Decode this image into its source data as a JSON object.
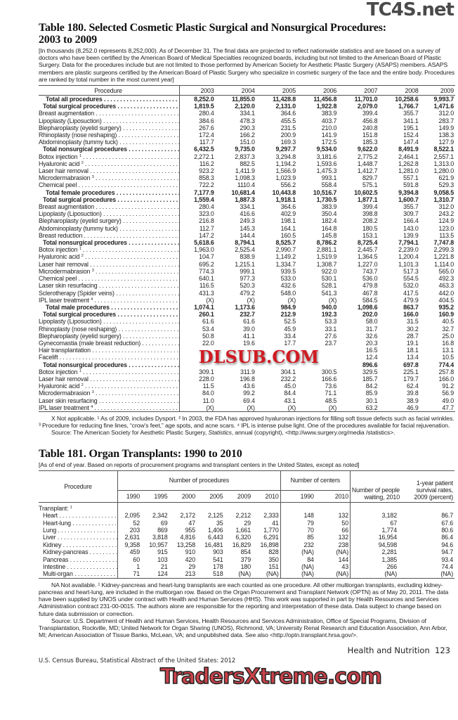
{
  "table180": {
    "title_line1": "Table 180. Selected Cosmetic Plastic Surgical and Nonsurgical Procedures:",
    "title_line2": "2003 to 2009",
    "intro": "[In thousands (8,252.0 represents 8,252,000). As of December 31. The final data are projected to reflect nationwide statistics and are based on a survey of doctors who have been certified by the American Board of Medical Specialties recognized boards, including but not limited to the American Board of Plastic Surgery. Data for the procedures include but are not limited to those performed by American Society for Aesthetic Plastic Surgery (ASAPS) members. ASAPS members are plastic surgeons certified by the American Board of Plastic Surgery who specialize in cosmetic surgery of the face and the entire body. Procedures are ranked by total number in the most current year]",
    "header_procedure": "Procedure",
    "years": [
      "2003",
      "2004",
      "2005",
      "2006",
      "2007",
      "2008",
      "2009"
    ],
    "rows": [
      {
        "label": "Total all procedures",
        "level": 1,
        "bold": true,
        "values": [
          "8,252.0",
          "11,855.0",
          "11,428.8",
          "11,456.8",
          "11,701.0",
          "10,258.6",
          "9,993.7"
        ]
      },
      {
        "label": "Total surgical procedures",
        "level": 2,
        "bold": true,
        "values": [
          "1,819.5",
          "2,120.0",
          "2,131.0",
          "1,922.8",
          "2,079.0",
          "1,766.7",
          "1,471.6"
        ]
      },
      {
        "label": "Breast augmentation",
        "values": [
          "280.4",
          "334.1",
          "364.6",
          "383.9",
          "399.4",
          "355.7",
          "312.0"
        ]
      },
      {
        "label": "Lipoplasty (Liposuction)",
        "values": [
          "384.6",
          "478.3",
          "455.5",
          "403.7",
          "456.8",
          "341.1",
          "283.7"
        ]
      },
      {
        "label": "Blepharoplasty (eyelid surgery)",
        "values": [
          "267.6",
          "290.3",
          "231.5",
          "210.0",
          "240.8",
          "195.1",
          "149.9"
        ]
      },
      {
        "label": "Rhinoplasty (nose reshaping)",
        "values": [
          "172.4",
          "166.2",
          "200.9",
          "141.9",
          "151.8",
          "152.4",
          "138.3"
        ]
      },
      {
        "label": "Abdominoplasty (tummy tuck)",
        "values": [
          "117.7",
          "151.0",
          "169.3",
          "172.5",
          "185.3",
          "147.4",
          "127.9"
        ]
      },
      {
        "label": "Total nonsurgical procedures",
        "level": 2,
        "bold": true,
        "values": [
          "6,432.5",
          "9,735.0",
          "9,297.7",
          "9,534.0",
          "9,622.0",
          "8,491.9",
          "8,522.1"
        ]
      },
      {
        "label": "Botox injection",
        "sup": "1",
        "values": [
          "2,272.1",
          "2,837.3",
          "3,294.8",
          "3,181.6",
          "2,775.2",
          "2,464.1",
          "2,557.1"
        ]
      },
      {
        "label": "Hyaluronic acid",
        "sup": "2",
        "values": [
          "116.2",
          "882.5",
          "1,194.2",
          "1,593.6",
          "1,448.7",
          "1,262.8",
          "1,313.0"
        ]
      },
      {
        "label": "Laser hair removal",
        "values": [
          "923.2",
          "1,411.9",
          "1,566.9",
          "1,475.3",
          "1,412.7",
          "1,281.0",
          "1,280.0"
        ]
      },
      {
        "label": "Microdermabrasion",
        "sup": "3",
        "values": [
          "858.3",
          "1,098.3",
          "1,023.9",
          "993.1",
          "829.7",
          "557.1",
          "621.9"
        ]
      },
      {
        "label": "Chemical peel",
        "values": [
          "722.2",
          "1110.4",
          "556.2",
          "558.4",
          "575.1",
          "591.8",
          "529.3"
        ]
      },
      {
        "label": "Total female procedures",
        "level": 1,
        "bold": true,
        "values": [
          "7,177.9",
          "10,681.4",
          "10,443.8",
          "10,516.7",
          "10,602.5",
          "9,394.8",
          "9,058.5"
        ]
      },
      {
        "label": "Total surgical procedures",
        "level": 2,
        "bold": true,
        "values": [
          "1,559.4",
          "1,887.3",
          "1,918.1",
          "1,730.5",
          "1,877.1",
          "1,600.7",
          "1,310.7"
        ]
      },
      {
        "label": "Breast augmentation",
        "values": [
          "280.4",
          "334.1",
          "364.6",
          "383.9",
          "399.4",
          "355.7",
          "312.0"
        ]
      },
      {
        "label": "Lipoplasty (Liposuction)",
        "values": [
          "323.0",
          "416.6",
          "402.9",
          "350.4",
          "398.8",
          "309.7",
          "243.2"
        ]
      },
      {
        "label": "Blepharoplasty (eyelid surgery)",
        "values": [
          "216.8",
          "249.3",
          "198.1",
          "182.4",
          "208.2",
          "166.4",
          "124.9"
        ]
      },
      {
        "label": "Abdominoplasty (tummy tuck)",
        "values": [
          "112.7",
          "145.3",
          "164.1",
          "164.8",
          "180.5",
          "143.0",
          "123.0"
        ]
      },
      {
        "label": "Breast reduction",
        "values": [
          "147.2",
          "144.4",
          "160.5",
          "145.8",
          "153.1",
          "139.9",
          "113.5"
        ]
      },
      {
        "label": "Total nonsurgical procedures",
        "level": 2,
        "bold": true,
        "values": [
          "5,618.6",
          "8,794.1",
          "8,525.7",
          "8,786.2",
          "8,725.4",
          "7,794.1",
          "7,747.8"
        ]
      },
      {
        "label": "Botox injection",
        "sup": "1",
        "values": [
          "1,963.0",
          "2,525.4",
          "2,990.7",
          "2,881.1",
          "2,445.7",
          "2,239.0",
          "2,299.3"
        ]
      },
      {
        "label": "Hyaluronic acid",
        "sup": "2",
        "values": [
          "104.7",
          "838.9",
          "1,149.2",
          "1,519.9",
          "1,364.5",
          "1,200.4",
          "1,221.8"
        ]
      },
      {
        "label": "Laser hair removal",
        "values": [
          "695.2",
          "1,215.1",
          "1,334.7",
          "1,308.7",
          "1,227.0",
          "1,101.3",
          "1,114.0"
        ]
      },
      {
        "label": "Microdermabrasion",
        "sup": "3",
        "values": [
          "774.3",
          "999.1",
          "939.5",
          "922.0",
          "743.7",
          "517.3",
          "565.0"
        ]
      },
      {
        "label": "Chemical peel",
        "values": [
          "640.1",
          "977.3",
          "533.0",
          "530.1",
          "536.0",
          "554.5",
          "492.3"
        ]
      },
      {
        "label": "Laser skin resurfacing",
        "values": [
          "116.5",
          "520.3",
          "432.6",
          "528.1",
          "479.8",
          "532.0",
          "463.3"
        ]
      },
      {
        "label": "Sclerotherapy (Spider veins)",
        "values": [
          "431.3",
          "479.2",
          "548.0",
          "541.3",
          "467.8",
          "417.5",
          "442.0"
        ]
      },
      {
        "label": "IPL laser treatment",
        "sup": "4",
        "values": [
          "(X)",
          "(X)",
          "(X)",
          "(X)",
          "584.5",
          "479.9",
          "404.5"
        ]
      },
      {
        "label": "Total male procedures",
        "level": 1,
        "bold": true,
        "values": [
          "1,074.1",
          "1,173.6",
          "984.9",
          "940.0",
          "1,098.6",
          "863.7",
          "935.2"
        ]
      },
      {
        "label": "Total surgical procedures",
        "level": 2,
        "bold": true,
        "values": [
          "260.1",
          "232.7",
          "212.9",
          "192.3",
          "202.0",
          "166.0",
          "160.9"
        ]
      },
      {
        "label": "Lipoplasty (Liposuction)",
        "values": [
          "61.6",
          "61.6",
          "52.5",
          "53.3",
          "58.0",
          "31.5",
          "40.5"
        ]
      },
      {
        "label": "Rhinoplasty (nose reshaping)",
        "values": [
          "53.4",
          "39.0",
          "45.9",
          "33.1",
          "31.7",
          "30.2",
          "32.7"
        ]
      },
      {
        "label": "Blepharoplasty (eyelid surgery)",
        "values": [
          "50.8",
          "41.1",
          "33.4",
          "27.6",
          "32.6",
          "28.7",
          "25.0"
        ]
      },
      {
        "label": "Gynecomastia (male breast reduction)",
        "values": [
          "22.0",
          "19.6",
          "17.7",
          "23.7",
          "20.3",
          "19.1",
          "16.8"
        ]
      },
      {
        "label": "Hair transplantation",
        "values": [
          "",
          "",
          "",
          "",
          "16.5",
          "18.1",
          "13.1"
        ]
      },
      {
        "label": "Facelift",
        "values": [
          "",
          "",
          "",
          "",
          "12.4",
          "13.4",
          "10.5"
        ]
      },
      {
        "label": "Total nonsurgical procedures",
        "level": 2,
        "bold": true,
        "values": [
          "",
          "",
          "",
          "",
          "896.6",
          "697.8",
          "774.4"
        ]
      },
      {
        "label": "Botox injection",
        "sup": "1",
        "values": [
          "309.1",
          "311.9",
          "304.1",
          "300.5",
          "329.5",
          "225.1",
          "257.8"
        ]
      },
      {
        "label": "Laser hair removal",
        "values": [
          "228.0",
          "196.8",
          "232.2",
          "166.6",
          "185.7",
          "179.7",
          "166.0"
        ]
      },
      {
        "label": "Hyaluronic acid",
        "sup": "2",
        "values": [
          "11.5",
          "43.6",
          "45.0",
          "73.6",
          "84.2",
          "62.4",
          "91.2"
        ]
      },
      {
        "label": "Microdermabrasion",
        "sup": "3",
        "values": [
          "84.0",
          "99.2",
          "84.4",
          "71.1",
          "85.9",
          "39.8",
          "56.9"
        ]
      },
      {
        "label": "Laser skin resurfacing",
        "values": [
          "11.0",
          "69.4",
          "43.1",
          "48.5",
          "30.1",
          "38.9",
          "49.0"
        ]
      },
      {
        "label": "IPL laser treatment",
        "sup": "4",
        "values": [
          "(X)",
          "(X)",
          "(X)",
          "(X)",
          "63.2",
          "46.9",
          "47.7"
        ]
      }
    ],
    "footnote": "X Not applicable. ¹ As of 2009, includes Dysport. ² In 2003, the FDA has approved hyaluronan injections for filling soft tissue defects such as facial wrinkles. ³ Procedure for reducing fine lines, “crow’s feet,” age spots, and acne scars. ⁴ IPL is intense pulse light. One of the procedures available for facial rejuvenation.",
    "source_pre": "Source: The American Society for Aesthetic Plastic Surgery, ",
    "source_italic": "Statistics",
    "source_post": ", annual (copyright), <http://www.surgery.org/media /statistics>."
  },
  "table181": {
    "title": "Table 181. Organ Transplants: 1990 to 2010",
    "intro": "[As of end of year. Based on reports of procurement programs and transplant centers in the United States, except as noted]",
    "header_procedure": "Procedure",
    "header_procedures": "Number of procedures",
    "header_centers": "Number of centers",
    "header_waiting": "Number of people waiting, 2010",
    "header_survival": "1-year patient survival rates, 2009 (percent)",
    "proc_years": [
      "1990",
      "1995",
      "2000",
      "2005",
      "2009",
      "2010"
    ],
    "center_years": [
      "1990",
      "2010"
    ],
    "group_label": "Transplant:",
    "group_sup": "1",
    "rows": [
      {
        "label": "Heart",
        "values": [
          "2,095",
          "2,342",
          "2,172",
          "2,125",
          "2,212",
          "2,333",
          "148",
          "132",
          "3,182",
          "86.7"
        ]
      },
      {
        "label": "Heart-lung",
        "values": [
          "52",
          "69",
          "47",
          "35",
          "29",
          "41",
          "79",
          "50",
          "67",
          "67.6"
        ]
      },
      {
        "label": "Lung",
        "values": [
          "203",
          "869",
          "955",
          "1,406",
          "1,661",
          "1,770",
          "70",
          "66",
          "1,774",
          "80.6"
        ]
      },
      {
        "label": "Liver",
        "values": [
          "2,631",
          "3,818",
          "4,816",
          "6,443",
          "6,320",
          "6,291",
          "85",
          "132",
          "16,954",
          "86.4"
        ]
      },
      {
        "label": "Kidney",
        "values": [
          "9,358",
          "10,957",
          "13,258",
          "16,481",
          "16,829",
          "16,898",
          "232",
          "238",
          "94,598",
          "94.6"
        ]
      },
      {
        "label": "Kidney-pancreas",
        "values": [
          "459",
          "915",
          "910",
          "903",
          "854",
          "828",
          "(NA)",
          "(NA)",
          "2,281",
          "94.7"
        ]
      },
      {
        "label": "Pancreas",
        "values": [
          "60",
          "103",
          "420",
          "541",
          "379",
          "350",
          "84",
          "144",
          "1,385",
          "93.4"
        ]
      },
      {
        "label": "Intestine",
        "values": [
          "1",
          "21",
          "29",
          "178",
          "180",
          "151",
          "(NA)",
          "43",
          "266",
          "74.4"
        ]
      },
      {
        "label": "Multi-organ",
        "values": [
          "71",
          "124",
          "213",
          "518",
          "(NA)",
          "(NA)",
          "(NA)",
          "(NA)",
          "(NA)",
          "(NA)"
        ]
      }
    ],
    "footnote": "NA Not available. ¹ Kidney-pancreas and heart-lung transplants are each counted as one procedure. All other multiorgan transplants, excluding kidney-pancreas and heart-lung, are included in the multiorgan row. Based on the Organ Procurement and Transplant Network (OPTN) as of May 20, 2011. The data have been supplied by UNOS under contract with Health and Human Services (HHS). This work was supported in part by Health Resources and Services Administration contract 231-00-0015. The authors alone are responsible for the reporting and interpretation of these data. Data subject to change based on future data submission or correction.",
    "source": "Source: U.S. Department of Health and Human Services, Health Resources and Services Administration, Office of Special Programs, Division of Transplantation, Rockville, MD; United Network for Organ Sharing (UNOS), Richmond, VA; University Renal Research and Education Association, Ann Arbor, MI; American Association of Tissue Banks, McLean, VA; and unpublished data. See also <http://optn.transplant.hrsa.gov/>."
  },
  "footer": {
    "section": "Health and Nutrition",
    "page_number": "123",
    "publication": "U.S. Census Bureau, Statistical Abstract of the United States: 2012"
  },
  "watermarks": {
    "top": "TC4S.net",
    "middle": "DLSUB.COM",
    "bottom": "TradersXtreme.com"
  }
}
